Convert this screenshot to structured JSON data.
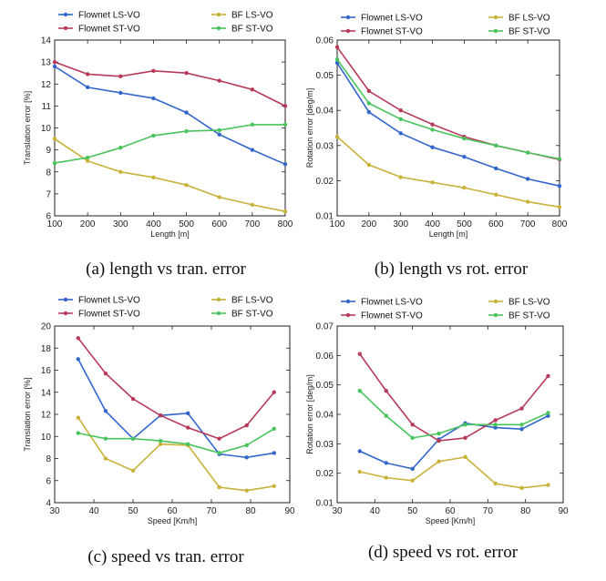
{
  "figure": {
    "captions": [
      "(a) length vs tran. error",
      "(b) length vs rot. error",
      "(c) speed vs tran. error",
      "(d) speed vs rot. error"
    ]
  },
  "colors": {
    "flownet_ls_vo": "#3366cc",
    "flownet_st_vo": "#b83a5a",
    "bf_ls_vo": "#c9b23a",
    "bf_st_vo": "#49c45c"
  },
  "chart_data": [
    {
      "type": "line",
      "xlabel": "Length [m]",
      "ylabel": "Translation error [%]",
      "xlim": [
        100,
        800
      ],
      "ylim": [
        6,
        14
      ],
      "xticks": [
        100,
        200,
        300,
        400,
        500,
        600,
        700,
        800
      ],
      "yticks": [
        6,
        7,
        8,
        9,
        10,
        11,
        12,
        13,
        14
      ],
      "grid": false,
      "legend_position": "top",
      "x": [
        100,
        200,
        300,
        400,
        500,
        600,
        700,
        800
      ],
      "series": [
        {
          "name": "Flownet LS-VO",
          "values": [
            12.8,
            11.85,
            11.6,
            11.35,
            10.7,
            9.7,
            9.0,
            8.35
          ]
        },
        {
          "name": "Flownet ST-VO",
          "values": [
            13.0,
            12.45,
            12.35,
            12.6,
            12.5,
            12.15,
            11.75,
            11.0
          ]
        },
        {
          "name": "BF LS-VO",
          "values": [
            9.5,
            8.5,
            8.0,
            7.75,
            7.4,
            6.85,
            6.5,
            6.2
          ]
        },
        {
          "name": "BF ST-VO",
          "values": [
            8.4,
            8.65,
            9.1,
            9.65,
            9.85,
            9.9,
            10.15,
            10.15
          ]
        }
      ]
    },
    {
      "type": "line",
      "xlabel": "Length [m]",
      "ylabel": "Rotation error [deg/m]",
      "xlim": [
        100,
        800
      ],
      "ylim": [
        0.01,
        0.06
      ],
      "xticks": [
        100,
        200,
        300,
        400,
        500,
        600,
        700,
        800
      ],
      "yticks": [
        0.01,
        0.02,
        0.03,
        0.04,
        0.05,
        0.06
      ],
      "ytick_labels": [
        "0.01",
        "0.02",
        "0.03",
        "0.04",
        "0.05",
        "0.06"
      ],
      "grid": false,
      "legend_position": "top",
      "x": [
        100,
        200,
        300,
        400,
        500,
        600,
        700,
        800
      ],
      "series": [
        {
          "name": "Flownet LS-VO",
          "values": [
            0.0535,
            0.0395,
            0.0335,
            0.0295,
            0.0268,
            0.0235,
            0.0205,
            0.0185
          ]
        },
        {
          "name": "Flownet ST-VO",
          "values": [
            0.058,
            0.0455,
            0.04,
            0.036,
            0.0325,
            0.03,
            0.028,
            0.026
          ]
        },
        {
          "name": "BF LS-VO",
          "values": [
            0.0325,
            0.0245,
            0.021,
            0.0195,
            0.018,
            0.016,
            0.014,
            0.0125
          ]
        },
        {
          "name": "BF ST-VO",
          "values": [
            0.0545,
            0.042,
            0.0375,
            0.0345,
            0.032,
            0.03,
            0.028,
            0.0262
          ]
        }
      ]
    },
    {
      "type": "line",
      "xlabel": "Speed [Km/h]",
      "ylabel": "Translation error [%]",
      "xlim": [
        30,
        90
      ],
      "ylim": [
        4,
        20
      ],
      "xticks": [
        30,
        40,
        50,
        60,
        70,
        80,
        90
      ],
      "yticks": [
        4,
        6,
        8,
        10,
        12,
        14,
        16,
        18,
        20
      ],
      "grid": false,
      "legend_position": "top",
      "x": [
        36,
        43,
        50,
        57,
        64,
        72,
        79,
        86
      ],
      "series": [
        {
          "name": "Flownet LS-VO",
          "values": [
            17.0,
            12.3,
            9.8,
            11.9,
            12.1,
            8.4,
            8.1,
            8.5
          ]
        },
        {
          "name": "Flownet ST-VO",
          "values": [
            18.9,
            15.7,
            13.4,
            11.9,
            10.8,
            9.8,
            11.0,
            14.0
          ]
        },
        {
          "name": "BF LS-VO",
          "values": [
            11.7,
            8.0,
            6.9,
            9.3,
            9.2,
            5.4,
            5.1,
            5.5
          ]
        },
        {
          "name": "BF ST-VO",
          "values": [
            10.3,
            9.8,
            9.8,
            9.6,
            9.3,
            8.5,
            9.2,
            10.7
          ]
        }
      ]
    },
    {
      "type": "line",
      "xlabel": "Speed [Km/h]",
      "ylabel": "Rotation error [deg/m]",
      "xlim": [
        30,
        90
      ],
      "ylim": [
        0.01,
        0.07
      ],
      "xticks": [
        30,
        40,
        50,
        60,
        70,
        80,
        90
      ],
      "yticks": [
        0.01,
        0.02,
        0.03,
        0.04,
        0.05,
        0.06,
        0.07
      ],
      "ytick_labels": [
        "0.01",
        "0.02",
        "0.03",
        "0.04",
        "0.05",
        "0.06",
        "0.07"
      ],
      "grid": false,
      "legend_position": "top",
      "x": [
        36,
        43,
        50,
        57,
        64,
        72,
        79,
        86
      ],
      "series": [
        {
          "name": "Flownet LS-VO",
          "values": [
            0.0275,
            0.0235,
            0.0215,
            0.0315,
            0.037,
            0.0355,
            0.035,
            0.0395
          ]
        },
        {
          "name": "Flownet ST-VO",
          "values": [
            0.0605,
            0.048,
            0.0365,
            0.031,
            0.032,
            0.038,
            0.042,
            0.053
          ]
        },
        {
          "name": "BF LS-VO",
          "values": [
            0.0205,
            0.0185,
            0.0175,
            0.024,
            0.0255,
            0.0165,
            0.015,
            0.016
          ]
        },
        {
          "name": "BF ST-VO",
          "values": [
            0.048,
            0.0395,
            0.032,
            0.0335,
            0.0365,
            0.0365,
            0.0365,
            0.0405
          ]
        }
      ]
    }
  ]
}
